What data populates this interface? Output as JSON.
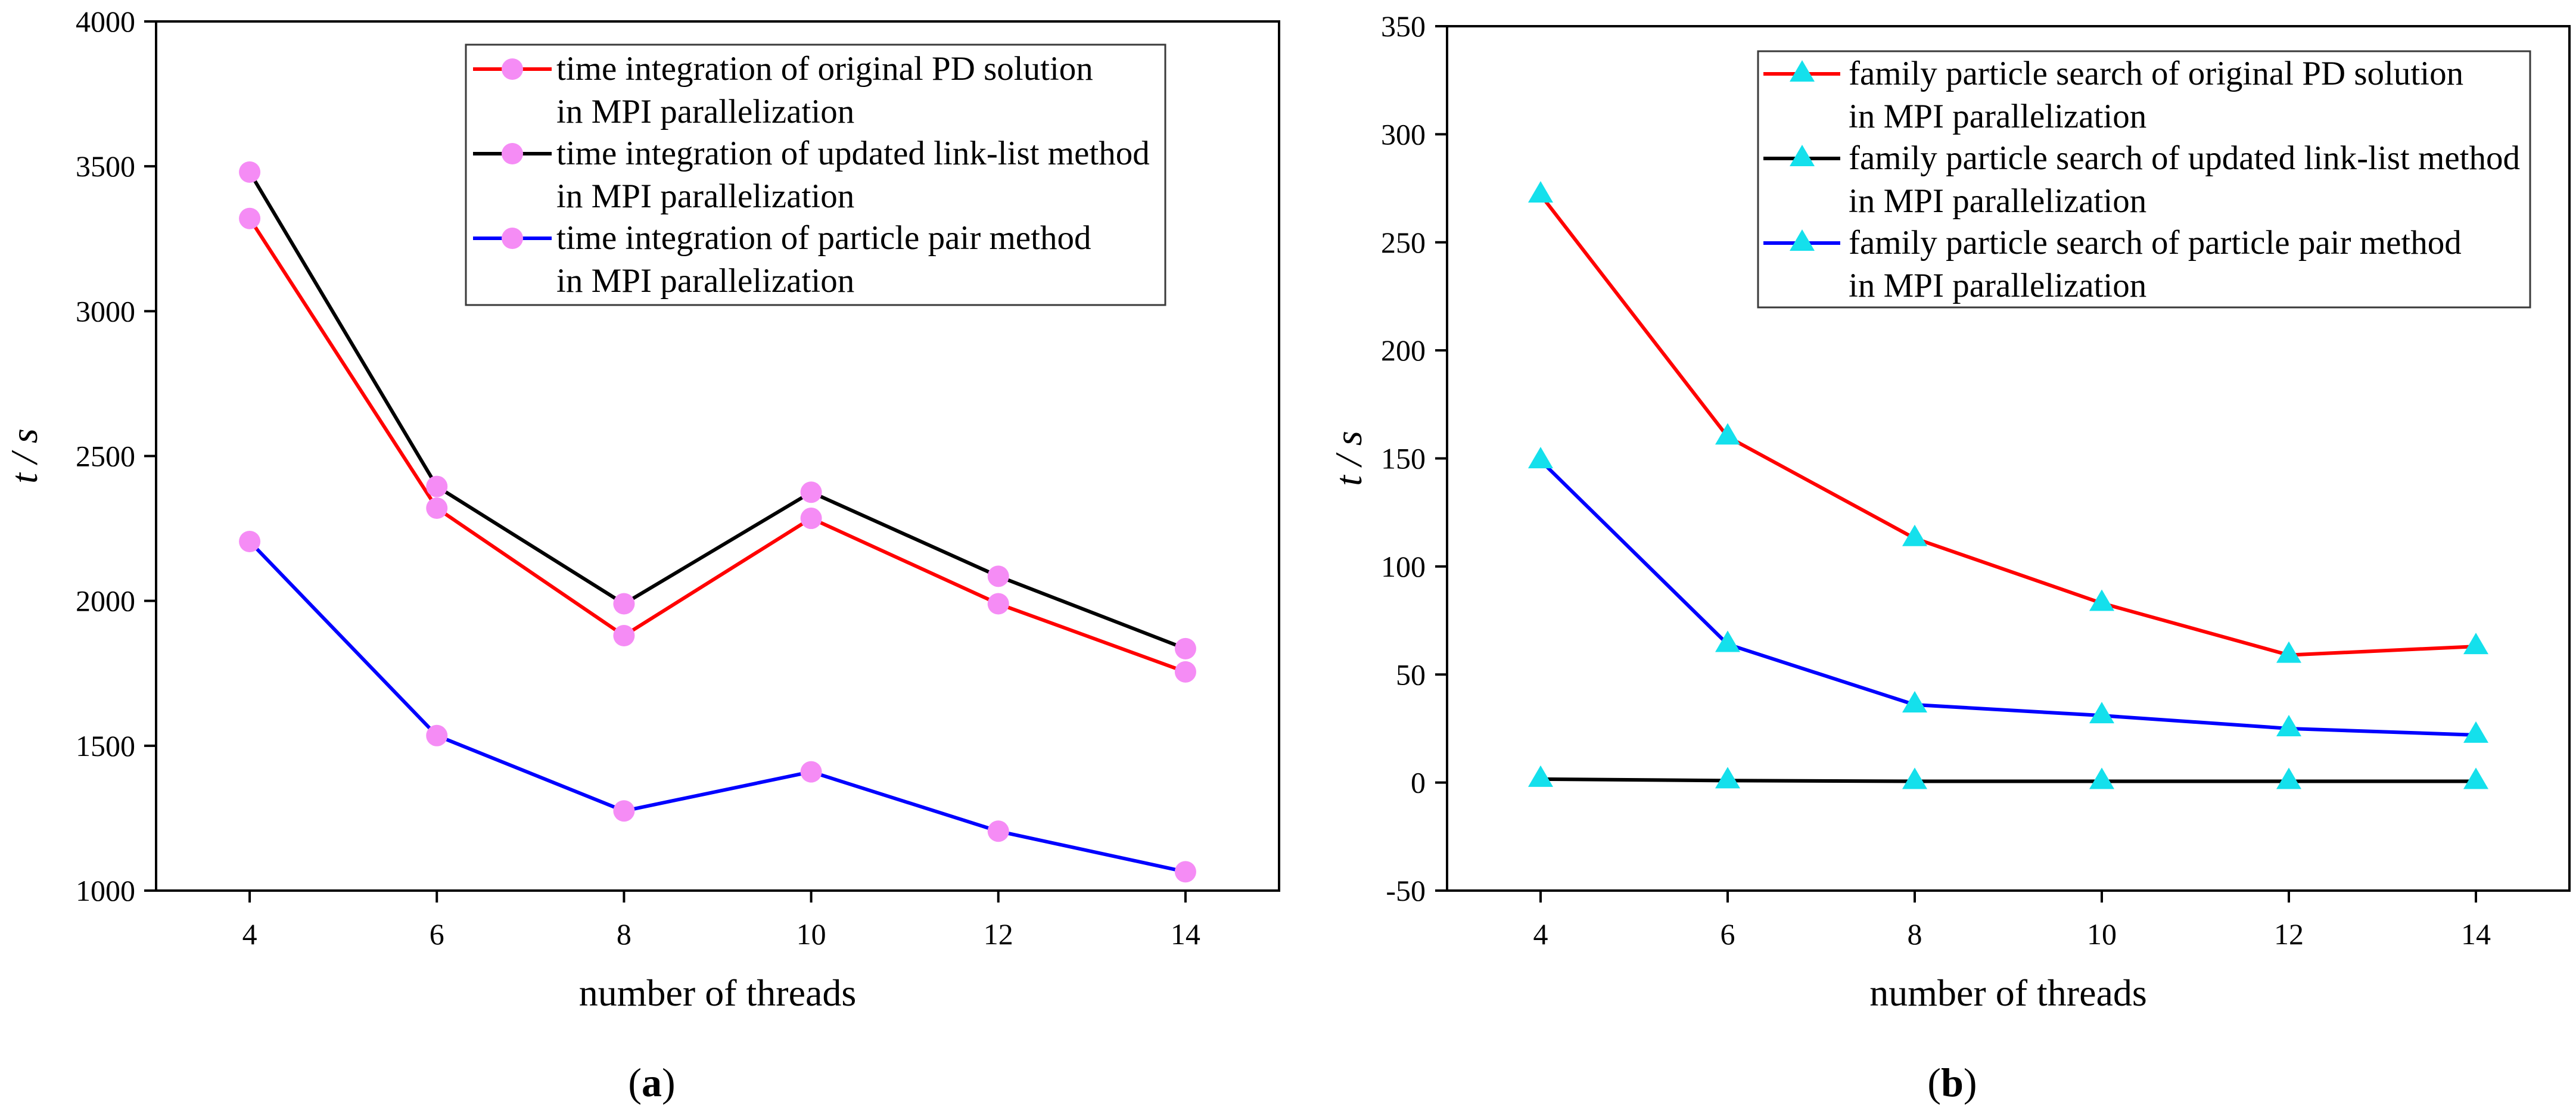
{
  "chart_data": [
    {
      "type": "line",
      "caption": {
        "prefix": "(",
        "label": "a",
        "suffix": ")"
      },
      "xlabel": "number of threads",
      "ylabel": "t / s",
      "x": [
        4,
        6,
        8,
        10,
        12,
        14
      ],
      "xlim": [
        3,
        15
      ],
      "ylim": [
        1000,
        4000
      ],
      "xticks": [
        4,
        6,
        8,
        10,
        12,
        14
      ],
      "yticks": [
        1000,
        1500,
        2000,
        2500,
        3000,
        3500,
        4000
      ],
      "grid": false,
      "marker": "circle",
      "marker_color": "#f58cf5",
      "series": [
        {
          "name_lines": [
            "time integration of original PD solution",
            "in MPI parallelization"
          ],
          "color": "#ff0000",
          "values": [
            3320,
            2320,
            1880,
            2285,
            1990,
            1755
          ]
        },
        {
          "name_lines": [
            "time integration of updated link-list method",
            "in MPI parallelization"
          ],
          "color": "#000000",
          "values": [
            3480,
            2395,
            1990,
            2375,
            2085,
            1835
          ]
        },
        {
          "name_lines": [
            "time integration of particle pair method",
            "in MPI parallelization"
          ],
          "color": "#0000ff",
          "values": [
            2205,
            1535,
            1275,
            1410,
            1205,
            1065
          ]
        }
      ]
    },
    {
      "type": "line",
      "caption": {
        "prefix": "(",
        "label": "b",
        "suffix": ")"
      },
      "xlabel": "number of threads",
      "ylabel": "t / s",
      "x": [
        4,
        6,
        8,
        10,
        12,
        14
      ],
      "xlim": [
        3,
        15
      ],
      "ylim": [
        -50,
        350
      ],
      "xticks": [
        4,
        6,
        8,
        10,
        12,
        14
      ],
      "yticks": [
        -50,
        0,
        50,
        100,
        150,
        200,
        250,
        300,
        350
      ],
      "grid": false,
      "marker": "triangle",
      "marker_color": "#14e0ec",
      "series": [
        {
          "name_lines": [
            "family particle search of original PD solution",
            "in MPI parallelization"
          ],
          "color": "#ff0000",
          "values": [
            272,
            160,
            113,
            83,
            59,
            63
          ]
        },
        {
          "name_lines": [
            "family particle search of updated link-list method",
            "in MPI parallelization"
          ],
          "color": "#000000",
          "values": [
            1.6,
            0.9,
            0.6,
            0.6,
            0.6,
            0.6
          ]
        },
        {
          "name_lines": [
            "family particle search of particle pair method",
            "in MPI parallelization"
          ],
          "color": "#0000ff",
          "values": [
            149,
            64,
            36,
            31,
            25,
            22
          ]
        }
      ]
    }
  ]
}
